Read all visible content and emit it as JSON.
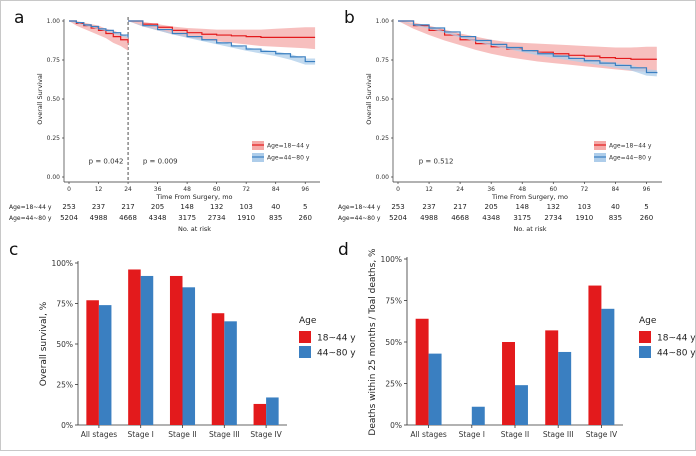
{
  "colors": {
    "young": "#e31a1c",
    "old": "#3a7fc1",
    "young_band": "#f4aaa8",
    "old_band": "#aecdea"
  },
  "panel_labels": {
    "a": "a",
    "b": "b",
    "c": "c",
    "d": "d"
  },
  "chart_data": [
    {
      "id": "a",
      "type": "line",
      "title": "",
      "xlabel": "Time From Surgery, mo",
      "ylabel": "Overall Survival",
      "xlim": [
        0,
        102
      ],
      "ylim": [
        0,
        1.0
      ],
      "xticks": [
        0,
        12,
        24,
        36,
        48,
        60,
        72,
        84,
        96
      ],
      "yticks": [
        "0.00",
        "0.25",
        "0.50",
        "0.75",
        "1.00"
      ],
      "landmark_month": 24,
      "pvalues": [
        {
          "text": "p = 0.042",
          "x": 8,
          "y": 0.085
        },
        {
          "text": "p = 0.009",
          "x": 30,
          "y": 0.085
        }
      ],
      "legend": {
        "position": "bottom-right",
        "items": [
          "Age=18~44 y",
          "Age=44~80 y"
        ]
      },
      "series": [
        {
          "name": "Age=18~44 y",
          "color_key": "young",
          "segment": 1,
          "x": [
            0,
            3,
            6,
            9,
            12,
            15,
            18,
            21,
            24
          ],
          "y": [
            1.0,
            0.985,
            0.97,
            0.955,
            0.94,
            0.92,
            0.9,
            0.88,
            0.86
          ],
          "lower": [
            1.0,
            0.97,
            0.95,
            0.93,
            0.91,
            0.89,
            0.86,
            0.84,
            0.81
          ],
          "upper": [
            1.0,
            1.0,
            0.99,
            0.98,
            0.97,
            0.95,
            0.94,
            0.92,
            0.9
          ]
        },
        {
          "name": "Age=44~80 y",
          "color_key": "old",
          "segment": 1,
          "x": [
            0,
            3,
            6,
            9,
            12,
            15,
            18,
            21,
            24
          ],
          "y": [
            1.0,
            0.99,
            0.975,
            0.965,
            0.95,
            0.94,
            0.925,
            0.91,
            0.895
          ],
          "lower": [
            1.0,
            0.987,
            0.972,
            0.961,
            0.946,
            0.935,
            0.92,
            0.905,
            0.889
          ],
          "upper": [
            1.0,
            0.993,
            0.978,
            0.969,
            0.954,
            0.945,
            0.93,
            0.915,
            0.901
          ]
        },
        {
          "name": "Age=18~44 y",
          "color_key": "young",
          "segment": 2,
          "x": [
            24,
            30,
            36,
            42,
            48,
            54,
            60,
            66,
            72,
            78,
            84,
            90,
            96,
            100
          ],
          "y": [
            1.0,
            0.98,
            0.96,
            0.94,
            0.925,
            0.915,
            0.91,
            0.905,
            0.9,
            0.895,
            0.895,
            0.895,
            0.895,
            0.895
          ],
          "lower": [
            1.0,
            0.965,
            0.94,
            0.915,
            0.895,
            0.88,
            0.87,
            0.86,
            0.85,
            0.84,
            0.835,
            0.83,
            0.825,
            0.82
          ],
          "upper": [
            1.0,
            0.995,
            0.98,
            0.965,
            0.955,
            0.95,
            0.945,
            0.945,
            0.945,
            0.945,
            0.95,
            0.955,
            0.96,
            0.96
          ]
        },
        {
          "name": "Age=44~80 y",
          "color_key": "old",
          "segment": 2,
          "x": [
            24,
            30,
            36,
            42,
            48,
            54,
            60,
            66,
            72,
            78,
            84,
            90,
            96,
            100
          ],
          "y": [
            1.0,
            0.97,
            0.945,
            0.92,
            0.9,
            0.88,
            0.86,
            0.84,
            0.82,
            0.805,
            0.79,
            0.77,
            0.74,
            0.74
          ],
          "lower": [
            1.0,
            0.966,
            0.94,
            0.914,
            0.893,
            0.872,
            0.851,
            0.83,
            0.809,
            0.792,
            0.775,
            0.752,
            0.72,
            0.72
          ],
          "upper": [
            1.0,
            0.974,
            0.95,
            0.926,
            0.907,
            0.888,
            0.869,
            0.85,
            0.831,
            0.818,
            0.805,
            0.788,
            0.76,
            0.76
          ]
        }
      ]
    },
    {
      "id": "b",
      "type": "line",
      "title": "",
      "xlabel": "Time From Surgery, mo",
      "ylabel": "Overall Survival",
      "xlim": [
        0,
        102
      ],
      "ylim": [
        0,
        1.0
      ],
      "xticks": [
        0,
        12,
        24,
        36,
        48,
        60,
        72,
        84,
        96
      ],
      "yticks": [
        "0.00",
        "0.25",
        "0.50",
        "0.75",
        "1.00"
      ],
      "pvalues": [
        {
          "text": "p = 0.512",
          "x": 8,
          "y": 0.085
        }
      ],
      "legend": {
        "position": "bottom-right",
        "items": [
          "Age=18~44 y",
          "Age=44~80 y"
        ]
      },
      "series": [
        {
          "name": "Age=18~44 y",
          "color_key": "young",
          "segment": 1,
          "x": [
            0,
            6,
            12,
            18,
            24,
            30,
            36,
            42,
            48,
            54,
            60,
            66,
            72,
            78,
            84,
            90,
            96,
            100
          ],
          "y": [
            1.0,
            0.97,
            0.94,
            0.91,
            0.88,
            0.855,
            0.835,
            0.82,
            0.81,
            0.8,
            0.79,
            0.78,
            0.775,
            0.765,
            0.76,
            0.755,
            0.755,
            0.755
          ],
          "lower": [
            1.0,
            0.95,
            0.91,
            0.875,
            0.845,
            0.815,
            0.79,
            0.77,
            0.755,
            0.74,
            0.73,
            0.72,
            0.71,
            0.7,
            0.69,
            0.68,
            0.675,
            0.675
          ],
          "upper": [
            1.0,
            0.99,
            0.97,
            0.945,
            0.92,
            0.9,
            0.88,
            0.865,
            0.86,
            0.855,
            0.85,
            0.845,
            0.84,
            0.835,
            0.83,
            0.83,
            0.835,
            0.835
          ]
        },
        {
          "name": "Age=44~80 y",
          "color_key": "old",
          "segment": 1,
          "x": [
            0,
            6,
            12,
            18,
            24,
            30,
            36,
            42,
            48,
            54,
            60,
            66,
            72,
            78,
            84,
            90,
            96,
            100
          ],
          "y": [
            1.0,
            0.975,
            0.955,
            0.93,
            0.9,
            0.875,
            0.85,
            0.83,
            0.81,
            0.79,
            0.775,
            0.76,
            0.745,
            0.73,
            0.715,
            0.7,
            0.67,
            0.665
          ],
          "lower": [
            1.0,
            0.972,
            0.951,
            0.925,
            0.894,
            0.868,
            0.843,
            0.822,
            0.801,
            0.78,
            0.764,
            0.748,
            0.732,
            0.716,
            0.7,
            0.683,
            0.65,
            0.645
          ],
          "upper": [
            1.0,
            0.978,
            0.959,
            0.935,
            0.906,
            0.882,
            0.857,
            0.838,
            0.819,
            0.8,
            0.786,
            0.772,
            0.758,
            0.744,
            0.73,
            0.717,
            0.69,
            0.685
          ]
        }
      ]
    },
    {
      "id": "c",
      "type": "bar",
      "title": "",
      "xlabel": "",
      "ylabel": "Overall survival, %",
      "categories": [
        "All stages",
        "Stage I",
        "Stage II",
        "Stage III",
        "Stage IV"
      ],
      "ylim": [
        0,
        100
      ],
      "yticks": [
        "0%",
        "25%",
        "50%",
        "75%",
        "100%"
      ],
      "legend": {
        "title": "Age",
        "position": "right"
      },
      "series": [
        {
          "name": "18~44 y",
          "color_key": "young",
          "values": [
            77,
            96,
            92,
            69,
            13
          ]
        },
        {
          "name": "44~80 y",
          "color_key": "old",
          "values": [
            74,
            92,
            85,
            64,
            17
          ]
        }
      ]
    },
    {
      "id": "d",
      "type": "bar",
      "title": "",
      "xlabel": "",
      "ylabel": "Deaths within 25 months / Toal deaths, %",
      "categories": [
        "All stages",
        "Stage I",
        "Stage II",
        "Stage III",
        "Stage IV"
      ],
      "ylim": [
        0,
        100
      ],
      "yticks": [
        "0%",
        "25%",
        "50%",
        "75%",
        "100%"
      ],
      "legend": {
        "title": "Age",
        "position": "right"
      },
      "series": [
        {
          "name": "18~44 y",
          "color_key": "young",
          "values": [
            64,
            0,
            50,
            57,
            84
          ]
        },
        {
          "name": "44~80 y",
          "color_key": "old",
          "values": [
            43,
            11,
            24,
            44,
            70
          ]
        }
      ]
    }
  ],
  "risk_tables": [
    {
      "id": "a",
      "title": "No. at risk",
      "rows": [
        {
          "label": "Age=18~44 y",
          "values": [
            "253",
            "237",
            "217",
            "205",
            "148",
            "132",
            "103",
            "40",
            "5"
          ]
        },
        {
          "label": "Age=44~80 y",
          "values": [
            "5204",
            "4988",
            "4668",
            "4348",
            "3175",
            "2734",
            "1910",
            "835",
            "260"
          ]
        }
      ]
    },
    {
      "id": "b",
      "title": "No. at risk",
      "rows": [
        {
          "label": "Age=18~44 y",
          "values": [
            "253",
            "237",
            "217",
            "205",
            "148",
            "132",
            "103",
            "40",
            "5"
          ]
        },
        {
          "label": "Age=44~80 y",
          "values": [
            "5204",
            "4988",
            "4668",
            "4348",
            "3175",
            "2734",
            "1910",
            "835",
            "260"
          ]
        }
      ]
    }
  ]
}
